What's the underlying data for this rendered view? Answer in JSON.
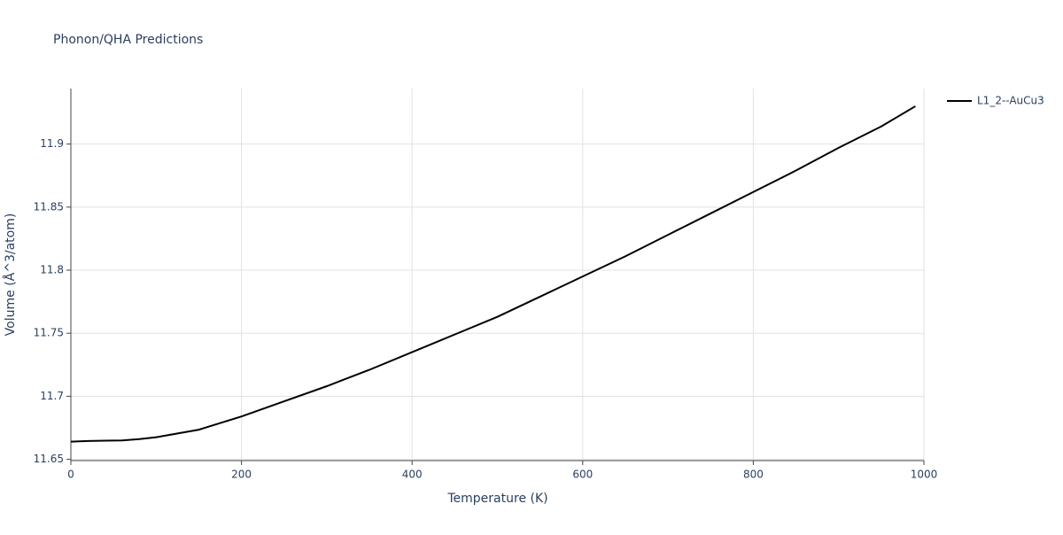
{
  "chart_data": {
    "type": "line",
    "title": "Phonon/QHA Predictions",
    "x_label": "Temperature (K)",
    "y_label": "Volume (Å^3/atom)",
    "x": [
      0,
      20,
      40,
      60,
      80,
      100,
      150,
      200,
      250,
      300,
      350,
      400,
      450,
      500,
      550,
      600,
      650,
      700,
      750,
      800,
      850,
      900,
      950,
      990
    ],
    "series": [
      {
        "name": "L1_2--AuCu3",
        "color": "#000000",
        "values": [
          11.664,
          11.6645,
          11.6648,
          11.665,
          11.666,
          11.6675,
          11.6735,
          11.684,
          11.696,
          11.708,
          11.721,
          11.735,
          11.749,
          11.763,
          11.779,
          11.795,
          11.811,
          11.828,
          11.845,
          11.862,
          11.879,
          11.897,
          11.914,
          11.93
        ]
      }
    ],
    "xlim": [
      0,
      1000
    ],
    "xticks": [
      0,
      200,
      400,
      600,
      800,
      1000
    ],
    "ylim": [
      11.649,
      11.944
    ],
    "yticks": [
      11.65,
      11.7,
      11.75,
      11.8,
      11.85,
      11.9
    ],
    "grid": true,
    "legend": "right"
  }
}
